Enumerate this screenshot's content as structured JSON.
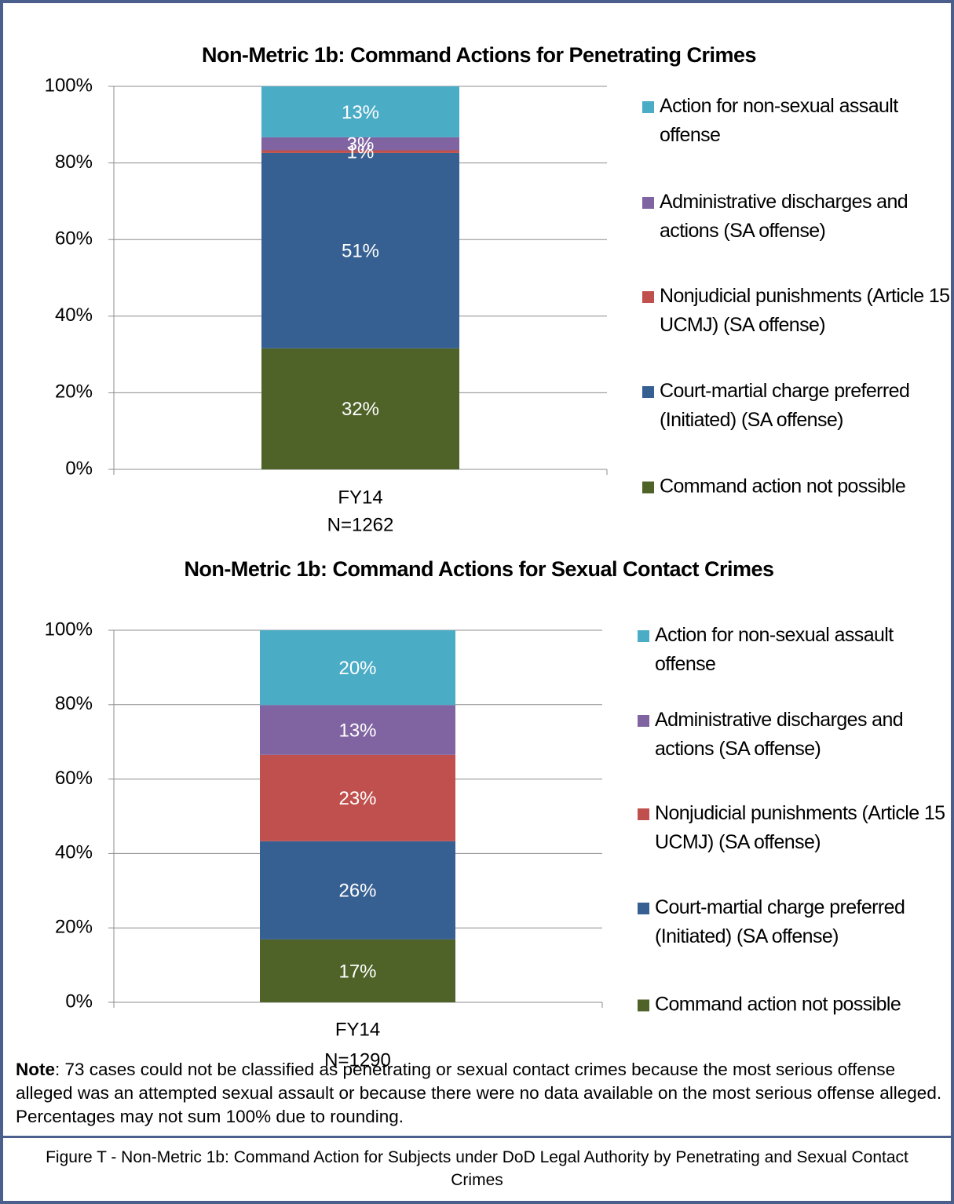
{
  "chart_data": [
    {
      "type": "stacked_bar",
      "title": "Non-Metric 1b: Command Actions for Penetrating Crimes",
      "categories": [
        "FY14"
      ],
      "category_notes": [
        "N=1262"
      ],
      "ylim": [
        0,
        100
      ],
      "yticks": [
        {
          "value": 0,
          "label": "0%"
        },
        {
          "value": 20,
          "label": "20%"
        },
        {
          "value": 40,
          "label": "40%"
        },
        {
          "value": 60,
          "label": "60%"
        },
        {
          "value": 80,
          "label": "80%"
        },
        {
          "value": 100,
          "label": "100%"
        }
      ],
      "grid": true,
      "legend": "right",
      "series": [
        {
          "name": "Command action not possible",
          "color": "#4f6228",
          "values": [
            31.6
          ],
          "value_labels": [
            "32%"
          ]
        },
        {
          "name": "Court-martial charge preferred (Initiated) (SA offense)",
          "color": "#376092",
          "values": [
            51.0
          ],
          "value_labels": [
            "51%"
          ]
        },
        {
          "name": "Nonjudicial punishments (Article 15 UCMJ) (SA offense)",
          "color": "#c0504d",
          "values": [
            0.7
          ],
          "value_labels": [
            "1%"
          ]
        },
        {
          "name": "Administrative discharges and actions (SA offense)",
          "color": "#8064a2",
          "values": [
            3.4
          ],
          "value_labels": [
            "3%"
          ]
        },
        {
          "name": "Action for non-sexual assault offense",
          "color": "#4bacc6",
          "values": [
            13.3
          ],
          "value_labels": [
            "13%"
          ]
        }
      ]
    },
    {
      "type": "stacked_bar",
      "title": "Non-Metric 1b: Command Actions for Sexual Contact Crimes",
      "categories": [
        "FY14"
      ],
      "category_notes": [
        "N=1290"
      ],
      "ylim": [
        0,
        100
      ],
      "yticks": [
        {
          "value": 0,
          "label": "0%"
        },
        {
          "value": 20,
          "label": "20%"
        },
        {
          "value": 40,
          "label": "40%"
        },
        {
          "value": 60,
          "label": "60%"
        },
        {
          "value": 80,
          "label": "80%"
        },
        {
          "value": 100,
          "label": "100%"
        }
      ],
      "grid": true,
      "legend": "right",
      "series": [
        {
          "name": "Command action not possible",
          "color": "#4f6228",
          "values": [
            16.9
          ],
          "value_labels": [
            "17%"
          ]
        },
        {
          "name": "Court-martial charge preferred (Initiated) (SA offense)",
          "color": "#376092",
          "values": [
            26.4
          ],
          "value_labels": [
            "26%"
          ]
        },
        {
          "name": "Nonjudicial punishments (Article 15 UCMJ) (SA offense)",
          "color": "#c0504d",
          "values": [
            23.2
          ],
          "value_labels": [
            "23%"
          ]
        },
        {
          "name": "Administrative discharges and actions (SA offense)",
          "color": "#8064a2",
          "values": [
            13.4
          ],
          "value_labels": [
            "13%"
          ]
        },
        {
          "name": "Action for non-sexual assault offense",
          "color": "#4bacc6",
          "values": [
            20.1
          ],
          "value_labels": [
            "20%"
          ]
        }
      ]
    }
  ],
  "note": {
    "label": "Note",
    "text": ": 73 cases could not be classified as penetrating or sexual contact crimes because the most serious offense alleged was an attempted sexual assault or because there were no data available on the most serious offense alleged.  Percentages may not sum 100% due to rounding."
  },
  "caption": "Figure T - Non-Metric 1b: Command Action for Subjects under DoD Legal Authority by Penetrating and Sexual Contact Crimes"
}
